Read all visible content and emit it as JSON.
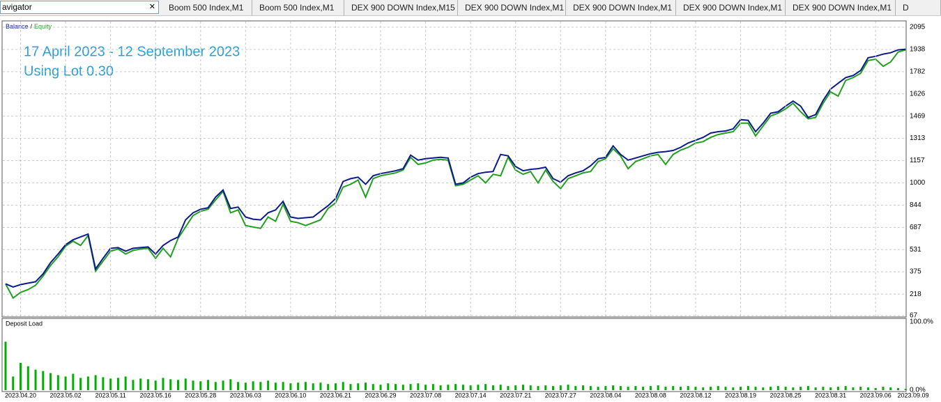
{
  "navigator": "avigator",
  "tabs": [
    "Boom 500 Index,M1",
    "Boom 500 Index,M1",
    "DEX 900 DOWN Index,M15",
    "DEX 900 DOWN Index,M1",
    "DEX 900 DOWN Index,M1",
    "DEX 900 DOWN Index,M1",
    "DEX 900 DOWN Index,M1",
    "D"
  ],
  "chart_data": [
    {
      "type": "line",
      "annotations": [
        "17 April 2023 - 12 September 2023",
        "Using Lot 0.30"
      ],
      "legend_separator": "/",
      "series": [
        {
          "name": "Balance",
          "color": "#0b1a8c",
          "values": [
            290,
            268,
            285,
            295,
            305,
            360,
            440,
            500,
            565,
            600,
            620,
            640,
            395,
            470,
            540,
            545,
            520,
            540,
            545,
            550,
            500,
            560,
            595,
            620,
            740,
            790,
            815,
            825,
            900,
            950,
            820,
            830,
            760,
            745,
            740,
            790,
            810,
            870,
            760,
            750,
            755,
            760,
            800,
            840,
            890,
            1010,
            1030,
            1040,
            990,
            1050,
            1065,
            1075,
            1085,
            1100,
            1195,
            1160,
            1170,
            1175,
            1180,
            1175,
            990,
            1000,
            1040,
            1065,
            1075,
            1080,
            1200,
            1190,
            1115,
            1085,
            1095,
            1100,
            1110,
            1030,
            1005,
            1050,
            1070,
            1085,
            1120,
            1170,
            1180,
            1260,
            1200,
            1160,
            1175,
            1190,
            1205,
            1215,
            1220,
            1228,
            1250,
            1280,
            1300,
            1320,
            1350,
            1360,
            1365,
            1380,
            1445,
            1440,
            1360,
            1420,
            1490,
            1500,
            1540,
            1575,
            1540,
            1460,
            1480,
            1580,
            1660,
            1700,
            1740,
            1755,
            1790,
            1880,
            1890,
            1905,
            1915,
            1935,
            1940
          ]
        },
        {
          "name": "Equity",
          "color": "#1fa01f",
          "values": [
            290,
            190,
            230,
            250,
            280,
            345,
            420,
            480,
            555,
            590,
            560,
            630,
            380,
            450,
            520,
            535,
            500,
            525,
            535,
            540,
            470,
            540,
            480,
            610,
            690,
            770,
            800,
            815,
            880,
            940,
            790,
            810,
            700,
            690,
            680,
            760,
            730,
            850,
            730,
            720,
            700,
            720,
            740,
            820,
            860,
            970,
            990,
            1020,
            900,
            1030,
            1050,
            1060,
            1070,
            1090,
            1180,
            1130,
            1140,
            1160,
            1165,
            1160,
            980,
            990,
            1020,
            1050,
            1000,
            1060,
            1050,
            1180,
            1090,
            1060,
            1080,
            1000,
            1090,
            1010,
            960,
            1030,
            1050,
            1070,
            1080,
            1150,
            1170,
            1240,
            1190,
            1100,
            1150,
            1170,
            1190,
            1200,
            1130,
            1200,
            1230,
            1250,
            1280,
            1290,
            1320,
            1340,
            1350,
            1360,
            1420,
            1420,
            1330,
            1400,
            1470,
            1490,
            1520,
            1560,
            1500,
            1450,
            1460,
            1560,
            1640,
            1610,
            1720,
            1740,
            1770,
            1860,
            1870,
            1820,
            1850,
            1920,
            1935
          ]
        }
      ],
      "xlim": [
        0,
        121
      ],
      "ylim": [
        57,
        2134
      ],
      "yticks": [
        67,
        218,
        375,
        531,
        687,
        844,
        1000,
        1157,
        1313,
        1469,
        1626,
        1782,
        1938,
        2095
      ],
      "grid": true
    },
    {
      "type": "bar",
      "title": "Deposit Load",
      "color": "#00b000",
      "values": [
        71,
        20,
        40,
        35,
        30,
        28,
        25,
        22,
        20,
        24,
        18,
        20,
        22,
        19,
        17,
        18,
        20,
        15,
        17,
        16,
        14,
        18,
        16,
        15,
        17,
        14,
        13,
        15,
        12,
        14,
        16,
        12,
        11,
        13,
        12,
        14,
        11,
        12,
        10,
        11,
        12,
        10,
        11,
        9,
        10,
        12,
        9,
        10,
        11,
        9,
        8,
        10,
        9,
        8,
        9,
        10,
        8,
        9,
        7,
        8,
        9,
        8,
        7,
        8,
        9,
        7,
        8,
        6,
        7,
        8,
        7,
        6,
        7,
        6,
        7,
        8,
        6,
        7,
        6,
        5,
        6,
        7,
        6,
        5,
        6,
        5,
        6,
        7,
        5,
        6,
        5,
        6,
        5,
        4,
        5,
        6,
        5,
        4,
        5,
        6,
        5,
        4,
        5,
        6,
        5,
        4,
        5,
        6,
        4,
        5,
        4,
        5,
        6,
        4,
        5,
        4,
        3,
        5,
        4,
        3,
        2
      ],
      "xlim": [
        0,
        121
      ],
      "xticks": [
        {
          "value": 2,
          "label": "2023.04.20"
        },
        {
          "value": 8,
          "label": "2023.05.02"
        },
        {
          "value": 14,
          "label": "2023.05.11"
        },
        {
          "value": 20,
          "label": "2023.05.16"
        },
        {
          "value": 26,
          "label": "2023.05.28"
        },
        {
          "value": 32,
          "label": "2023.06.03"
        },
        {
          "value": 38,
          "label": "2023.06.10"
        },
        {
          "value": 44,
          "label": "2023.06.21"
        },
        {
          "value": 50,
          "label": "2023.06.29"
        },
        {
          "value": 56,
          "label": "2023.07.08"
        },
        {
          "value": 62,
          "label": "2023.07.14"
        },
        {
          "value": 68,
          "label": "2023.07.21"
        },
        {
          "value": 74,
          "label": "2023.07.27"
        },
        {
          "value": 80,
          "label": "2023.08.04"
        },
        {
          "value": 86,
          "label": "2023.08.08"
        },
        {
          "value": 92,
          "label": "2023.08.12"
        },
        {
          "value": 98,
          "label": "2023.08.19"
        },
        {
          "value": 104,
          "label": "2023.08.25"
        },
        {
          "value": 110,
          "label": "2023.08.31"
        },
        {
          "value": 116,
          "label": "2023.09.06"
        },
        {
          "value": 121,
          "label": "2023.09.09"
        }
      ],
      "ylim": [
        0,
        100
      ],
      "yticks": [
        {
          "value": 100,
          "label": "100.0%"
        },
        {
          "value": 0,
          "label": "0.0%"
        }
      ]
    }
  ]
}
